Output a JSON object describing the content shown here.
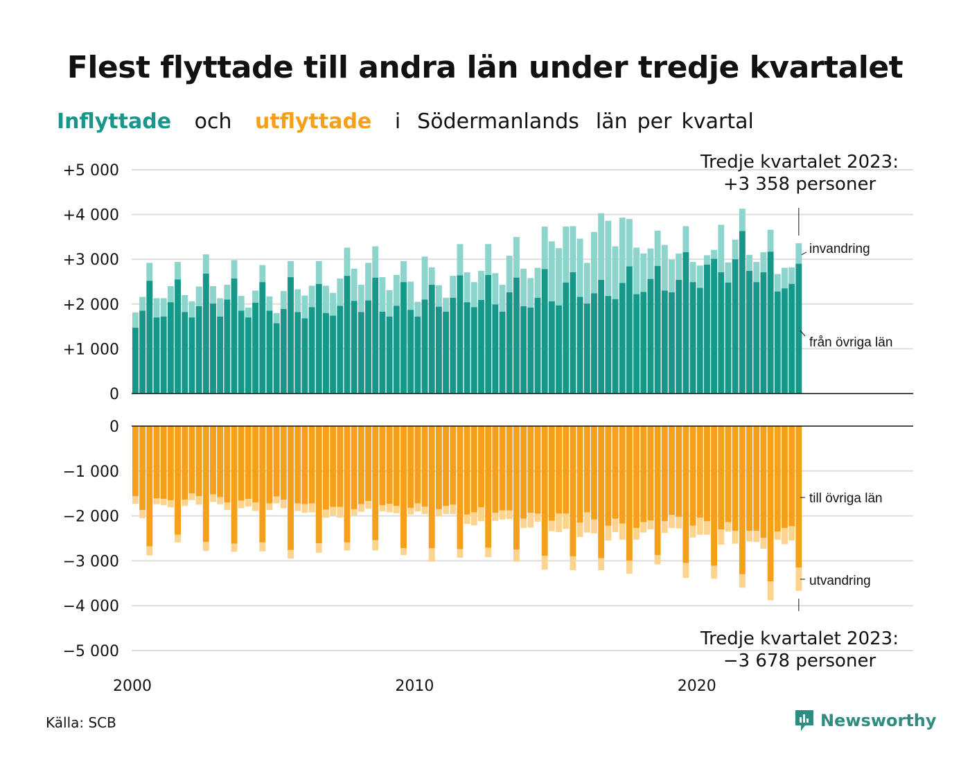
{
  "title": "Flest flyttade till andra län under tredje kvartalet",
  "subtitle": {
    "in_word": "Inflyttade",
    "mid_word": "och",
    "out_word": "utflyttade",
    "rest": [
      "i",
      "Södermanlands",
      "län",
      "per",
      "kvartal"
    ]
  },
  "source": "Källa: SCB",
  "logo_text": "Newsworthy",
  "colors": {
    "in_dark": "#17968a",
    "in_light": "#8dd4cc",
    "out_dark": "#f5a01a",
    "out_light": "#fcd48f",
    "grid": "#dddddd"
  },
  "chart_data": {
    "type": "bar",
    "stacked": true,
    "x_start": "2000 Q1",
    "x_ticks": [
      "2000",
      "2010",
      "2020"
    ],
    "upper": {
      "y_ticks": [
        "+5 000",
        "+4 000",
        "+3 000",
        "+2 000",
        "+1 000",
        "0"
      ],
      "ylim": [
        0,
        5000
      ],
      "series": [
        {
          "name": "från övriga län",
          "values": [
            1470,
            1850,
            2520,
            1700,
            1720,
            2040,
            2550,
            1820,
            1700,
            1950,
            2680,
            2010,
            1720,
            2100,
            2570,
            1850,
            1700,
            2030,
            2490,
            1850,
            1570,
            1890,
            2600,
            1820,
            1680,
            1930,
            2450,
            1800,
            1740,
            1960,
            2630,
            2070,
            1820,
            2080,
            2590,
            1830,
            1720,
            1960,
            2490,
            1870,
            1720,
            2100,
            2430,
            1940,
            1830,
            2140,
            2640,
            2040,
            1930,
            2090,
            2650,
            1990,
            1830,
            2260,
            2590,
            1950,
            1920,
            2140,
            2780,
            2060,
            1970,
            2480,
            2710,
            2160,
            2010,
            2240,
            2540,
            2180,
            2110,
            2470,
            2840,
            2220,
            2270,
            2560,
            2850,
            2300,
            2260,
            2540,
            3160,
            2490,
            2360,
            2880,
            3010,
            2710,
            2480,
            3000,
            3630,
            2740,
            2490,
            2710,
            3170,
            2280,
            2350,
            2450,
            2900
          ]
        },
        {
          "name": "invandring",
          "values": [
            340,
            310,
            400,
            430,
            410,
            360,
            390,
            380,
            360,
            440,
            430,
            390,
            410,
            330,
            410,
            330,
            220,
            270,
            380,
            320,
            230,
            400,
            360,
            510,
            510,
            480,
            510,
            610,
            510,
            610,
            630,
            720,
            610,
            840,
            700,
            770,
            590,
            690,
            470,
            630,
            330,
            960,
            390,
            480,
            310,
            490,
            700,
            670,
            560,
            650,
            690,
            700,
            600,
            820,
            910,
            840,
            660,
            670,
            950,
            1340,
            1280,
            1250,
            1030,
            1300,
            910,
            1370,
            1490,
            1680,
            1180,
            1460,
            1060,
            1040,
            860,
            680,
            790,
            1020,
            730,
            590,
            580,
            450,
            500,
            210,
            200,
            1060,
            450,
            440,
            500,
            360,
            450,
            450,
            490,
            390,
            460,
            370,
            458
          ]
        }
      ],
      "annotation": {
        "text_line1": "Tredje kvartalet 2023:",
        "text_line2": "+3 358 personer"
      }
    },
    "lower": {
      "y_ticks": [
        "0",
        "−1 000",
        "−2 000",
        "−3 000",
        "−4 000",
        "−5 000"
      ],
      "ylim": [
        -5000,
        0
      ],
      "series": [
        {
          "name": "till övriga län",
          "values": [
            1560,
            1870,
            2680,
            1610,
            1620,
            1650,
            2420,
            1640,
            1500,
            1560,
            2580,
            1520,
            1580,
            1700,
            2620,
            1660,
            1620,
            1700,
            2590,
            1720,
            1570,
            1640,
            2760,
            1720,
            1740,
            1720,
            2610,
            1860,
            1800,
            1800,
            2590,
            1850,
            1740,
            1670,
            2540,
            1760,
            1730,
            1780,
            2720,
            1820,
            1720,
            1790,
            2720,
            1850,
            1780,
            1750,
            2740,
            1970,
            1920,
            1810,
            2710,
            1930,
            1880,
            1880,
            2750,
            2060,
            1930,
            1950,
            2890,
            2110,
            1950,
            1950,
            2900,
            2150,
            1920,
            2080,
            2940,
            2220,
            2060,
            2170,
            3000,
            2270,
            2140,
            2100,
            2870,
            2120,
            1980,
            2020,
            3050,
            2220,
            2040,
            2120,
            3110,
            2300,
            2140,
            2330,
            3300,
            2330,
            2330,
            2490,
            3460,
            2350,
            2270,
            2230,
            3150
          ]
        },
        {
          "name": "utvandring",
          "values": [
            170,
            180,
            200,
            130,
            140,
            160,
            170,
            140,
            150,
            190,
            200,
            170,
            160,
            170,
            180,
            170,
            170,
            190,
            200,
            150,
            150,
            190,
            190,
            170,
            190,
            200,
            210,
            180,
            190,
            240,
            180,
            140,
            170,
            170,
            230,
            140,
            190,
            160,
            150,
            150,
            180,
            170,
            300,
            160,
            180,
            210,
            190,
            210,
            290,
            310,
            210,
            180,
            200,
            190,
            270,
            210,
            330,
            180,
            310,
            230,
            410,
            340,
            310,
            320,
            450,
            310,
            270,
            330,
            300,
            360,
            290,
            260,
            230,
            200,
            210,
            260,
            290,
            260,
            330,
            260,
            380,
            300,
            290,
            340,
            210,
            290,
            300,
            240,
            250,
            240,
            420,
            180,
            360,
            320,
            520
          ]
        }
      ],
      "annotation": {
        "text_line1": "Tredje kvartalet 2023:",
        "text_line2": "−3 678 personer"
      }
    }
  }
}
